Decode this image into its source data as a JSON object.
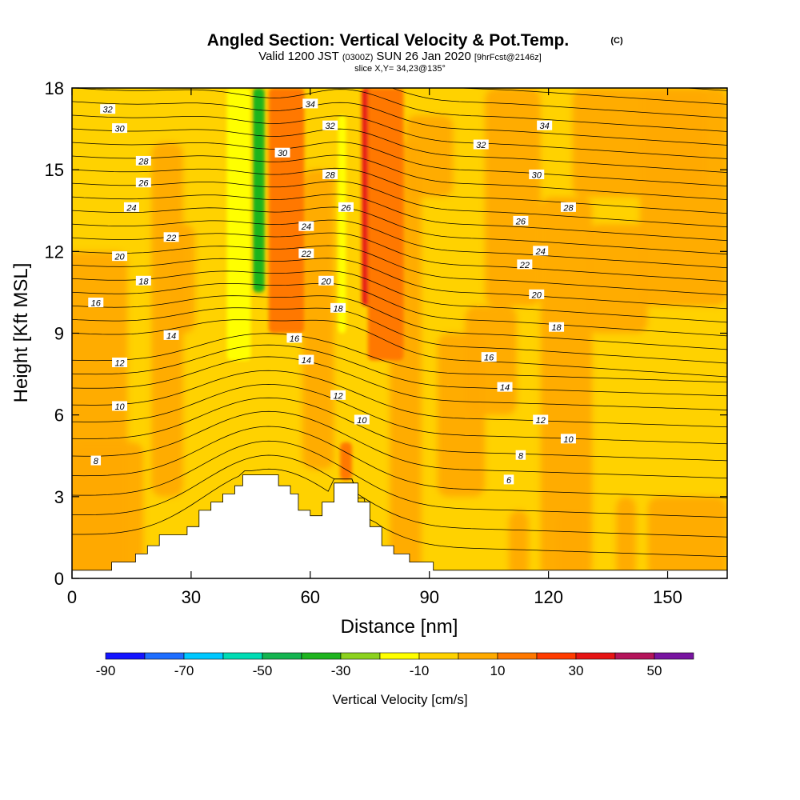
{
  "chart_data": {
    "type": "heatmap",
    "title": "Angled Section: Vertical Velocity & Pot.Temp.",
    "title_mark": "(C)",
    "subtitle_parts": [
      "Valid 1200 JST",
      "(0300Z)",
      "SUN 26 Jan 2020",
      "[9hrFcst@2146z]"
    ],
    "slice_label": "slice X,Y= 34,23@135°",
    "xlabel": "Distance [nm]",
    "ylabel": "Height [Kft MSL]",
    "xlim": [
      0,
      165
    ],
    "ylim": [
      0,
      18
    ],
    "x_ticks": [
      0,
      30,
      60,
      90,
      120,
      150
    ],
    "y_ticks": [
      0,
      3,
      6,
      9,
      12,
      15,
      18
    ],
    "colorbar": {
      "label": "Vertical Velocity [cm/s]",
      "bounds": [
        -90,
        -80,
        -70,
        -60,
        -50,
        -40,
        -30,
        -20,
        -10,
        0,
        10,
        20,
        30,
        40,
        50,
        60
      ],
      "colors": [
        "#1414ff",
        "#1e6eff",
        "#00c8ff",
        "#00dcb4",
        "#14b450",
        "#1eb41e",
        "#8cd21e",
        "#ffff00",
        "#ffd200",
        "#ffaa00",
        "#ff7800",
        "#ff3c00",
        "#e61414",
        "#b4145a",
        "#7814a0"
      ],
      "tick_labels": [
        "-90",
        "-70",
        "-50",
        "-30",
        "-10",
        "10",
        "30",
        "50"
      ],
      "tick_values": [
        -90,
        -70,
        -50,
        -30,
        -10,
        10,
        30,
        50
      ]
    },
    "terrain_kft": [
      [
        0,
        0.3
      ],
      [
        10,
        0.3
      ],
      [
        10,
        0.6
      ],
      [
        16,
        0.6
      ],
      [
        16,
        0.9
      ],
      [
        19,
        0.9
      ],
      [
        19,
        1.2
      ],
      [
        22,
        1.2
      ],
      [
        22,
        1.6
      ],
      [
        29,
        1.6
      ],
      [
        29,
        1.9
      ],
      [
        32,
        1.9
      ],
      [
        32,
        2.5
      ],
      [
        35,
        2.5
      ],
      [
        35,
        2.8
      ],
      [
        38,
        2.8
      ],
      [
        38,
        3.1
      ],
      [
        41,
        3.1
      ],
      [
        41,
        3.4
      ],
      [
        43,
        3.4
      ],
      [
        43,
        3.8
      ],
      [
        52,
        3.8
      ],
      [
        52,
        3.4
      ],
      [
        55,
        3.4
      ],
      [
        55,
        3.1
      ],
      [
        57,
        3.1
      ],
      [
        57,
        2.5
      ],
      [
        60,
        2.5
      ],
      [
        60,
        2.3
      ],
      [
        63,
        2.3
      ],
      [
        63,
        2.8
      ],
      [
        66,
        2.8
      ],
      [
        66,
        3.5
      ],
      [
        72,
        3.5
      ],
      [
        72,
        2.8
      ],
      [
        75,
        2.8
      ],
      [
        75,
        1.9
      ],
      [
        78,
        1.9
      ],
      [
        78,
        1.2
      ],
      [
        81,
        1.2
      ],
      [
        81,
        0.9
      ],
      [
        85,
        0.9
      ],
      [
        85,
        0.6
      ],
      [
        91,
        0.6
      ],
      [
        91,
        0.3
      ],
      [
        165,
        0.3
      ]
    ],
    "theta_contours": [
      {
        "value": 6,
        "label_at": [
          110,
          3.6
        ]
      },
      {
        "value": 8,
        "label_at": [
          6,
          4.3
        ]
      },
      {
        "value": 8,
        "label_at": [
          113,
          4.5
        ]
      },
      {
        "value": 10,
        "label_at": [
          12,
          6.3
        ]
      },
      {
        "value": 10,
        "label_at": [
          73,
          5.8
        ]
      },
      {
        "value": 10,
        "label_at": [
          125,
          5.1
        ]
      },
      {
        "value": 12,
        "label_at": [
          12,
          7.9
        ]
      },
      {
        "value": 12,
        "label_at": [
          67,
          6.7
        ]
      },
      {
        "value": 12,
        "label_at": [
          118,
          5.8
        ]
      },
      {
        "value": 14,
        "label_at": [
          25,
          8.9
        ]
      },
      {
        "value": 14,
        "label_at": [
          59,
          8.0
        ]
      },
      {
        "value": 14,
        "label_at": [
          109,
          7.0
        ]
      },
      {
        "value": 16,
        "label_at": [
          56,
          8.8
        ]
      },
      {
        "value": 16,
        "label_at": [
          105,
          8.1
        ]
      },
      {
        "value": 16,
        "label_at": [
          6,
          10.1
        ]
      },
      {
        "value": 18,
        "label_at": [
          18,
          10.9
        ]
      },
      {
        "value": 18,
        "label_at": [
          67,
          9.9
        ]
      },
      {
        "value": 18,
        "label_at": [
          122,
          9.2
        ]
      },
      {
        "value": 20,
        "label_at": [
          12,
          11.8
        ]
      },
      {
        "value": 20,
        "label_at": [
          64,
          10.9
        ]
      },
      {
        "value": 20,
        "label_at": [
          117,
          10.4
        ]
      },
      {
        "value": 22,
        "label_at": [
          25,
          12.5
        ]
      },
      {
        "value": 22,
        "label_at": [
          59,
          11.9
        ]
      },
      {
        "value": 22,
        "label_at": [
          114,
          11.5
        ]
      },
      {
        "value": 24,
        "label_at": [
          15,
          13.6
        ]
      },
      {
        "value": 24,
        "label_at": [
          59,
          12.9
        ]
      },
      {
        "value": 24,
        "label_at": [
          118,
          12.0
        ]
      },
      {
        "value": 26,
        "label_at": [
          18,
          14.5
        ]
      },
      {
        "value": 26,
        "label_at": [
          69,
          13.6
        ]
      },
      {
        "value": 26,
        "label_at": [
          113,
          13.1
        ]
      },
      {
        "value": 28,
        "label_at": [
          18,
          15.3
        ]
      },
      {
        "value": 28,
        "label_at": [
          65,
          14.8
        ]
      },
      {
        "value": 28,
        "label_at": [
          125,
          13.6
        ]
      },
      {
        "value": 30,
        "label_at": [
          12,
          16.5
        ]
      },
      {
        "value": 30,
        "label_at": [
          53,
          15.6
        ]
      },
      {
        "value": 30,
        "label_at": [
          117,
          14.8
        ]
      },
      {
        "value": 32,
        "label_at": [
          9,
          17.2
        ]
      },
      {
        "value": 32,
        "label_at": [
          65,
          16.6
        ]
      },
      {
        "value": 32,
        "label_at": [
          103,
          15.9
        ]
      },
      {
        "value": 34,
        "label_at": [
          60,
          17.4
        ]
      },
      {
        "value": 34,
        "label_at": [
          119,
          16.6
        ]
      }
    ],
    "velocity_features": [
      {
        "kind": "downdraft",
        "center_x": 47,
        "x_width": 3,
        "z_range": [
          10.5,
          18
        ],
        "value_cms": -35
      },
      {
        "kind": "downdraft",
        "center_x": 42,
        "x_width": 6,
        "z_range": [
          8,
          18
        ],
        "value_cms": -15
      },
      {
        "kind": "updraft",
        "center_x": 55,
        "x_width": 6,
        "z_range": [
          10.5,
          18
        ],
        "value_cms": 35
      },
      {
        "kind": "updraft",
        "center_x": 54,
        "x_width": 9,
        "z_range": [
          9,
          18
        ],
        "value_cms": 15
      },
      {
        "kind": "updraft",
        "center_x": 76,
        "x_width": 6,
        "z_range": [
          10,
          18
        ],
        "value_cms": 35
      },
      {
        "kind": "updraft",
        "center_x": 79,
        "x_width": 9,
        "z_range": [
          8,
          18
        ],
        "value_cms": 15
      },
      {
        "kind": "downdraft",
        "center_x": 68,
        "x_width": 2,
        "z_range": [
          9,
          17
        ],
        "value_cms": -12
      },
      {
        "kind": "updraft",
        "center_x": 69,
        "x_width": 3,
        "z_range": [
          3.6,
          5
        ],
        "value_cms": 15
      }
    ]
  }
}
